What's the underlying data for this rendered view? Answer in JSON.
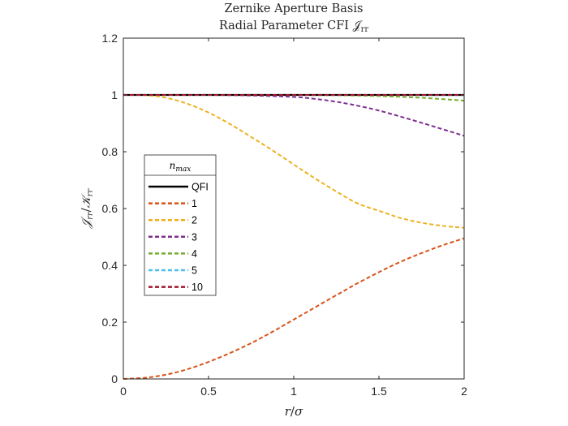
{
  "chart_data": {
    "type": "line",
    "title": "Zernike Aperture Basis",
    "subtitle": "Radial Parameter CFI 𝒥_rr",
    "xlabel": "r/σ",
    "ylabel": "𝒥_rr/𝒦_rr",
    "xlim": [
      0,
      2
    ],
    "ylim": [
      0,
      1.2
    ],
    "xticks": [
      0,
      0.5,
      1,
      1.5,
      2
    ],
    "xtick_labels": [
      "0",
      "0.5",
      "1",
      "1.5",
      "2"
    ],
    "yticks": [
      0,
      0.2,
      0.4,
      0.6,
      0.8,
      1,
      1.2
    ],
    "ytick_labels": [
      "0",
      "0.2",
      "0.4",
      "0.6",
      "0.8",
      "1",
      "1.2"
    ],
    "grid": false,
    "legend": {
      "title": "n_max",
      "location": "left"
    },
    "series": [
      {
        "name": "QFI",
        "color": "#000000",
        "style": "solid",
        "x": [
          0,
          0.25,
          0.5,
          0.75,
          1,
          1.25,
          1.5,
          1.75,
          2
        ],
        "y": [
          1,
          1,
          1,
          1,
          1,
          1,
          1,
          1,
          1
        ]
      },
      {
        "name": "1",
        "color": "#D95319",
        "style": "dashed",
        "x": [
          0,
          0.125,
          0.25,
          0.375,
          0.5,
          0.625,
          0.75,
          0.875,
          1,
          1.125,
          1.25,
          1.375,
          1.5,
          1.625,
          1.75,
          1.875,
          2
        ],
        "y": [
          0,
          0.004,
          0.015,
          0.034,
          0.06,
          0.091,
          0.126,
          0.166,
          0.209,
          0.252,
          0.295,
          0.337,
          0.376,
          0.412,
          0.443,
          0.471,
          0.495
        ]
      },
      {
        "name": "2",
        "color": "#EDB120",
        "style": "dashed",
        "x": [
          0,
          0.125,
          0.25,
          0.375,
          0.5,
          0.625,
          0.75,
          0.875,
          1,
          1.125,
          1.25,
          1.375,
          1.5,
          1.625,
          1.75,
          1.875,
          2
        ],
        "y": [
          1,
          0.999,
          0.99,
          0.969,
          0.938,
          0.898,
          0.852,
          0.805,
          0.755,
          0.706,
          0.66,
          0.618,
          0.592,
          0.567,
          0.55,
          0.539,
          0.532
        ]
      },
      {
        "name": "3",
        "color": "#7E2F8E",
        "style": "dashed",
        "x": [
          0,
          0.25,
          0.5,
          0.75,
          1,
          1.125,
          1.25,
          1.375,
          1.5,
          1.625,
          1.75,
          1.875,
          2
        ],
        "y": [
          1,
          1,
          1,
          0.998,
          0.993,
          0.986,
          0.976,
          0.962,
          0.945,
          0.924,
          0.902,
          0.879,
          0.856
        ]
      },
      {
        "name": "4",
        "color": "#77AC30",
        "style": "dashed",
        "x": [
          0,
          0.5,
          1,
          1.25,
          1.5,
          1.75,
          2
        ],
        "y": [
          1,
          1,
          1,
          0.999,
          0.996,
          0.99,
          0.98
        ]
      },
      {
        "name": "5",
        "color": "#4DBEEE",
        "style": "dashed",
        "x": [
          0,
          0.5,
          1,
          1.5,
          2
        ],
        "y": [
          1,
          1,
          1,
          1,
          0.999
        ]
      },
      {
        "name": "10",
        "color": "#A2142F",
        "style": "dashed",
        "x": [
          0,
          0.5,
          1,
          1.5,
          2
        ],
        "y": [
          1,
          1,
          1,
          1,
          1
        ]
      }
    ]
  }
}
